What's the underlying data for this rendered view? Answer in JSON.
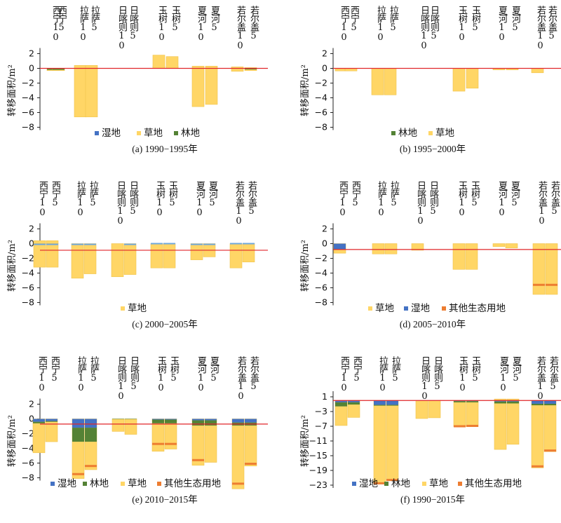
{
  "colors": {
    "湿地": "#4472c4",
    "草地": "#ffd666",
    "林地": "#548235",
    "其他生态用地": "#ed7d31",
    "reference_line": "#e0262a",
    "grass_edge": "#f0c24a"
  },
  "chart_data": [
    {
      "type": "bar",
      "subtype": "stacked",
      "panel": "a",
      "caption": "(a) 1990−1995年",
      "ylabel": "转移面积/m²",
      "ylim": [
        -9,
        3
      ],
      "yticks": [
        2,
        0,
        -2,
        -4,
        -6,
        -8
      ],
      "ref_line": 0,
      "categories": [
        "西宁10",
        "西宁5",
        "拉萨10",
        "拉萨5",
        "日喀则10",
        "日喀则5",
        "玉树10",
        "玉树5",
        "夏河10",
        "夏河5",
        "若尔盖10",
        "若尔盖5"
      ],
      "legend": [
        "湿地",
        "草地",
        "林地"
      ],
      "series": [
        {
          "name": "草地",
          "values": [
            -0.3,
            -0.3,
            -6.6,
            -6.6,
            0,
            0,
            1.8,
            1.6,
            -5.2,
            -4.9,
            -0.4,
            -0.3
          ]
        },
        {
          "name": "林地",
          "values": [
            -0.2,
            -0.2,
            0,
            0,
            0,
            0,
            0,
            0,
            0,
            0,
            0,
            -0.1
          ]
        },
        {
          "name": "湿地",
          "values": [
            0,
            0,
            0,
            0,
            0,
            0,
            0,
            0,
            0,
            0,
            0,
            -0.05
          ]
        }
      ],
      "pos_grass": [
        0,
        0,
        0.4,
        0.4,
        0,
        0,
        0.3,
        0.3,
        0.3,
        0.3,
        0.2,
        0.1
      ]
    },
    {
      "type": "bar",
      "subtype": "stacked",
      "panel": "b",
      "caption": "(b) 1995−2000年",
      "ylabel": "转移面积/m²",
      "ylim": [
        -9,
        3
      ],
      "yticks": [
        2,
        0,
        -2,
        -4,
        -6,
        -8
      ],
      "ref_line": 0,
      "categories": [
        "西宁10",
        "西宁5",
        "拉萨10",
        "拉萨5",
        "日喀则10",
        "日喀则5",
        "玉树10",
        "玉树5",
        "夏河10",
        "夏河5",
        "若尔盖10",
        "若尔盖5"
      ],
      "legend": [
        "林地",
        "草地"
      ],
      "series": [
        {
          "name": "草地",
          "values": [
            -0.35,
            -0.35,
            -3.6,
            -3.6,
            0,
            0,
            -3.1,
            -2.7,
            -0.2,
            -0.2,
            -0.6,
            0
          ]
        },
        {
          "name": "林地",
          "values": [
            0,
            0,
            0,
            0,
            0,
            0,
            0,
            0,
            0,
            0,
            0,
            0
          ]
        }
      ],
      "pos_grass": [
        0,
        0,
        0,
        0,
        0,
        0,
        0,
        0,
        0,
        0,
        0,
        0
      ]
    },
    {
      "type": "bar",
      "subtype": "stacked",
      "panel": "c",
      "caption": "(c) 2000−2005年",
      "ylabel": "转移面积/m²",
      "ylim": [
        -9,
        3
      ],
      "yticks": [
        2,
        0,
        -2,
        -4,
        -6,
        -8
      ],
      "ref_line": -0.9,
      "categories": [
        "西宁10",
        "西宁5",
        "拉萨10",
        "拉萨5",
        "日喀则10",
        "日喀则5",
        "玉树10",
        "玉树5",
        "夏河10",
        "夏河5",
        "若尔盖10",
        "若尔盖5"
      ],
      "legend": [
        "草地"
      ],
      "series": [
        {
          "name": "草地",
          "values": [
            -3.2,
            -3.2,
            -4.7,
            -4.1,
            -4.5,
            -4.2,
            -3.3,
            -3.3,
            -2.2,
            -1.8,
            -3.3,
            -2.5
          ]
        }
      ],
      "pos_grass": [
        0.4,
        0.4,
        0,
        0,
        0,
        0,
        0,
        0,
        0,
        0,
        0,
        0
      ],
      "thin_marks": [
        -0.1,
        -0.1,
        -0.1,
        -0.1,
        null,
        -0.1,
        0,
        0,
        -0.1,
        -0.1,
        0,
        0
      ]
    },
    {
      "type": "bar",
      "subtype": "stacked",
      "panel": "d",
      "caption": "(d) 2005−2010年",
      "ylabel": "转移面积/m²",
      "ylim": [
        -9,
        3
      ],
      "yticks": [
        2,
        0,
        -2,
        -4,
        -6,
        -8
      ],
      "ref_line": -0.8,
      "categories": [
        "西宁10",
        "西宁5",
        "拉萨10",
        "拉萨5",
        "日喀则10",
        "日喀则5",
        "玉树10",
        "玉树5",
        "夏河10",
        "夏河5",
        "若尔盖10",
        "若尔盖5"
      ],
      "legend": [
        "草地",
        "湿地",
        "其他生态用地"
      ],
      "series": [
        {
          "name": "湿地",
          "values": [
            -0.8,
            0,
            0,
            0,
            0,
            0,
            0,
            0,
            0,
            0,
            0,
            0
          ]
        },
        {
          "name": "草地",
          "values": [
            -1.3,
            0,
            -1.4,
            -1.4,
            -0.9,
            0,
            -3.5,
            -3.5,
            -0.4,
            -0.6,
            -6.9,
            -6.9
          ]
        },
        {
          "name": "其他生态用地",
          "values": [
            0,
            0,
            0,
            0,
            0,
            0,
            0,
            0,
            0,
            0,
            -5.6,
            -5.6
          ]
        }
      ],
      "pos_grass": [
        0,
        0,
        0,
        0,
        0,
        0,
        0,
        0,
        0,
        0,
        0,
        0
      ]
    },
    {
      "type": "bar",
      "subtype": "stacked",
      "panel": "e",
      "caption": "(e) 2010−2015年",
      "ylabel": "转移面积/m²",
      "ylim": [
        -9,
        3
      ],
      "yticks": [
        2,
        0,
        -2,
        -4,
        -6,
        -8
      ],
      "ref_line": -0.7,
      "categories": [
        "西宁10",
        "西宁5",
        "拉萨10",
        "拉萨5",
        "日喀则10",
        "日喀则5",
        "玉树10",
        "玉树5",
        "夏河10",
        "夏河5",
        "若尔盖10",
        "若尔盖5"
      ],
      "legend": [
        "湿地",
        "林地",
        "草地",
        "其他生态用地"
      ],
      "series": [
        {
          "name": "湿地",
          "values": [
            -0.4,
            -0.3,
            -1.2,
            -1.2,
            0,
            0,
            -0.1,
            -0.1,
            -0.2,
            -0.2,
            -0.5,
            -0.5
          ]
        },
        {
          "name": "林地",
          "values": [
            -0.2,
            -0.1,
            -1.9,
            -1.9,
            -0.05,
            -0.05,
            -0.5,
            -0.5,
            -0.7,
            -0.7,
            -0.4,
            -0.4
          ]
        },
        {
          "name": "草地",
          "values": [
            -4.6,
            -3.1,
            -8.1,
            -6.9,
            -1.7,
            -2.1,
            -4.4,
            -4.1,
            -6.3,
            -5.9,
            -9.5,
            -6.4
          ]
        },
        {
          "name": "其他生态用地",
          "values": [
            0,
            0,
            -7.5,
            -6.4,
            0,
            0,
            -3.4,
            -3.4,
            -5.6,
            0,
            -8.8,
            -6.1
          ]
        }
      ],
      "pos_grass": [
        0,
        0,
        0,
        0,
        0,
        0,
        0,
        0,
        0,
        0,
        0,
        0
      ]
    },
    {
      "type": "bar",
      "subtype": "stacked",
      "panel": "f",
      "caption": "(f) 1990−2015年",
      "ylabel": "转移面积/m²",
      "ylim": [
        -23,
        1
      ],
      "yticks": [
        1,
        -3,
        -7,
        -11,
        -15,
        -19,
        -23
      ],
      "ref_line": 0,
      "categories": [
        "西宁10",
        "西宁5",
        "拉萨10",
        "拉萨5",
        "日喀则10",
        "日喀则5",
        "玉树10",
        "玉树5",
        "夏河10",
        "夏河5",
        "若尔盖10",
        "若尔盖5"
      ],
      "legend": [
        "湿地",
        "林地",
        "草地",
        "其他生态用地"
      ],
      "series": [
        {
          "name": "湿地",
          "values": [
            -0.5,
            -0.5,
            -1.2,
            -1.2,
            0,
            0,
            -0.2,
            -0.2,
            -0.3,
            -0.3,
            -0.9,
            -0.9
          ]
        },
        {
          "name": "林地",
          "values": [
            -1.1,
            -0.6,
            -0.2,
            -0.2,
            0,
            0,
            -0.3,
            -0.3,
            -0.5,
            -0.5,
            -0.4,
            -0.4
          ]
        },
        {
          "name": "草地",
          "values": [
            -6.8,
            -4.6,
            -22.6,
            -21.8,
            -4.9,
            -4.7,
            -7.1,
            -7.1,
            -13.3,
            -11.9,
            -18.3,
            -13.9
          ]
        },
        {
          "name": "其他生态用地",
          "values": [
            0,
            0,
            -22.5,
            -21.6,
            0,
            0,
            -7.0,
            -6.9,
            0,
            0,
            -17.9,
            -13.6
          ]
        }
      ],
      "pos_grass": [
        0,
        0,
        0,
        0,
        0,
        0,
        0,
        0,
        0.4,
        0.4,
        0,
        0
      ]
    }
  ]
}
